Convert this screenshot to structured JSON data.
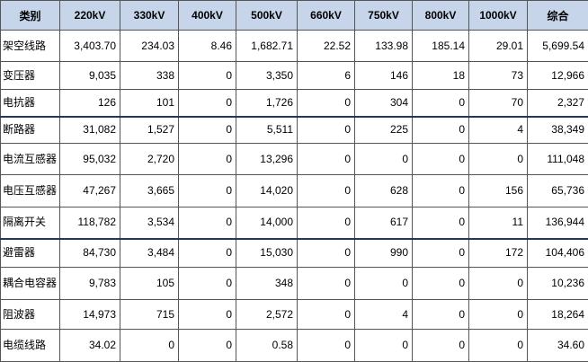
{
  "table": {
    "header": [
      "类别",
      "220kV",
      "330kV",
      "400kV",
      "500kV",
      "660kV",
      "750kV",
      "800kV",
      "1000kV",
      "综合"
    ],
    "rows": [
      [
        "架空线路",
        "3,403.70",
        "234.03",
        "8.46",
        "1,682.71",
        "22.52",
        "133.98",
        "185.14",
        "29.01",
        "5,699.54"
      ],
      [
        "变压器",
        "9,035",
        "338",
        "0",
        "3,350",
        "6",
        "146",
        "18",
        "73",
        "12,966"
      ],
      [
        "电抗器",
        "126",
        "101",
        "0",
        "1,726",
        "0",
        "304",
        "0",
        "70",
        "2,327"
      ],
      [
        "断路器",
        "31,082",
        "1,527",
        "0",
        "5,511",
        "0",
        "225",
        "0",
        "4",
        "38,349"
      ],
      [
        "电流互感器",
        "95,032",
        "2,720",
        "0",
        "13,296",
        "0",
        "0",
        "0",
        "0",
        "111,048"
      ],
      [
        "电压互感器",
        "47,267",
        "3,665",
        "0",
        "14,020",
        "0",
        "628",
        "0",
        "156",
        "65,736"
      ],
      [
        "隔离开关",
        "118,782",
        "3,534",
        "0",
        "14,000",
        "0",
        "617",
        "0",
        "11",
        "136,944"
      ],
      [
        "避雷器",
        "84,730",
        "3,484",
        "0",
        "15,030",
        "0",
        "990",
        "0",
        "172",
        "104,406"
      ],
      [
        "耦合电容器",
        "9,783",
        "105",
        "0",
        "348",
        "0",
        "0",
        "0",
        "0",
        "10,236"
      ],
      [
        "阻波器",
        "14,973",
        "715",
        "0",
        "2,572",
        "0",
        "4",
        "0",
        "0",
        "18,264"
      ],
      [
        "电缆线路",
        "34.02",
        "0",
        "0",
        "0.58",
        "0",
        "0",
        "0",
        "0",
        "34.60"
      ]
    ]
  }
}
